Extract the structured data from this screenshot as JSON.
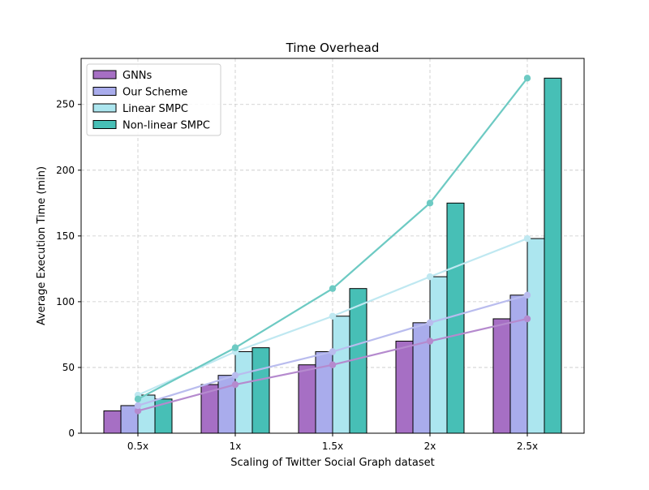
{
  "chart_data": {
    "type": "bar",
    "title": "Time Overhead",
    "xlabel": "Scaling of Twitter Social Graph dataset",
    "ylabel": "Average Execution Time (min)",
    "categories": [
      "0.5x",
      "1x",
      "1.5x",
      "2x",
      "2.5x"
    ],
    "ylim": [
      0,
      285
    ],
    "yticks": [
      0,
      50,
      100,
      150,
      200,
      250
    ],
    "grid": true,
    "legend_position": "top-left",
    "series": [
      {
        "name": "GNNs",
        "color": "#a66fc4",
        "line_color": "#b58ace",
        "values": [
          17,
          37,
          52,
          70,
          87
        ]
      },
      {
        "name": "Our Scheme",
        "color": "#a9acec",
        "line_color": "#b9bcee",
        "values": [
          21,
          44,
          62,
          84,
          105
        ]
      },
      {
        "name": "Linear SMPC",
        "color": "#ace6ef",
        "line_color": "#bfe8f1",
        "values": [
          29,
          62,
          89,
          119,
          148
        ]
      },
      {
        "name": "Non-linear SMPC",
        "color": "#47bfb6",
        "line_color": "#6dcac3",
        "values": [
          26,
          65,
          110,
          175,
          270
        ]
      }
    ],
    "trend_lines": {
      "GNNs": [
        17,
        37,
        52,
        70,
        87
      ],
      "Our Scheme": [
        21,
        44,
        62,
        84,
        105
      ],
      "Linear SMPC": [
        29,
        62,
        89,
        119,
        148
      ],
      "Non-linear SMPC": [
        26,
        65,
        110,
        175,
        270
      ]
    }
  }
}
